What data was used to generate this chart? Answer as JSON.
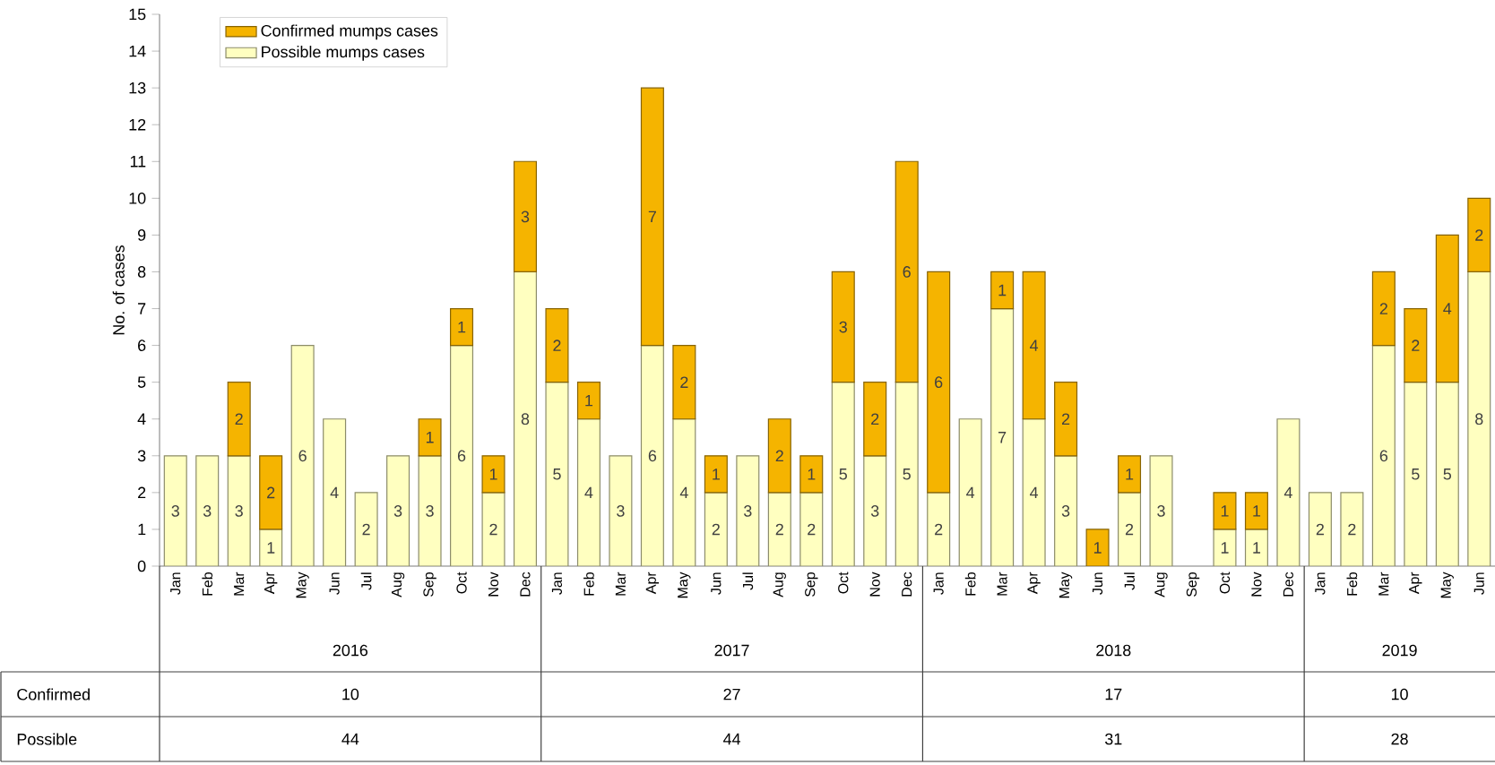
{
  "chart_data": {
    "type": "bar",
    "stacked": true,
    "ylabel": "No. of cases",
    "categories": [
      "Jan",
      "Feb",
      "Mar",
      "Apr",
      "May",
      "Jun",
      "Jul",
      "Aug",
      "Sep",
      "Oct",
      "Nov",
      "Dec",
      "Jan",
      "Feb",
      "Mar",
      "Apr",
      "May",
      "Jun",
      "Jul",
      "Aug",
      "Sep",
      "Oct",
      "Nov",
      "Dec",
      "Jan",
      "Feb",
      "Mar",
      "Apr",
      "May",
      "Jun",
      "Jul",
      "Aug",
      "Sep",
      "Oct",
      "Nov",
      "Dec",
      "Jan",
      "Feb",
      "Mar",
      "Apr",
      "May",
      "Jun"
    ],
    "series": [
      {
        "name": "Possible mumps cases",
        "color": "#ffffc0",
        "values": [
          3,
          3,
          3,
          1,
          6,
          4,
          2,
          3,
          3,
          6,
          2,
          8,
          5,
          4,
          3,
          6,
          4,
          2,
          3,
          2,
          2,
          5,
          3,
          5,
          2,
          4,
          7,
          4,
          3,
          null,
          2,
          3,
          null,
          1,
          1,
          4,
          2,
          2,
          6,
          5,
          5,
          8
        ]
      },
      {
        "name": "Confirmed mumps cases",
        "color": "#f5b400",
        "values": [
          null,
          null,
          2,
          2,
          null,
          null,
          null,
          null,
          1,
          1,
          1,
          3,
          2,
          1,
          null,
          7,
          2,
          1,
          null,
          2,
          1,
          3,
          2,
          6,
          6,
          null,
          1,
          4,
          2,
          1,
          1,
          null,
          null,
          1,
          1,
          null,
          null,
          null,
          2,
          2,
          4,
          2
        ]
      }
    ],
    "ylim": [
      0,
      15
    ],
    "yticks": [
      0,
      1,
      2,
      3,
      4,
      5,
      6,
      7,
      8,
      9,
      10,
      11,
      12,
      13,
      14,
      15
    ],
    "data_labels": true,
    "legend": "top left",
    "grid": false,
    "annotations": [
      "2016",
      "2017",
      "2018",
      "2019",
      "Confirmed",
      "10",
      "27",
      "17",
      "10",
      "Possible",
      "44",
      "44",
      "31",
      "28"
    ]
  }
}
